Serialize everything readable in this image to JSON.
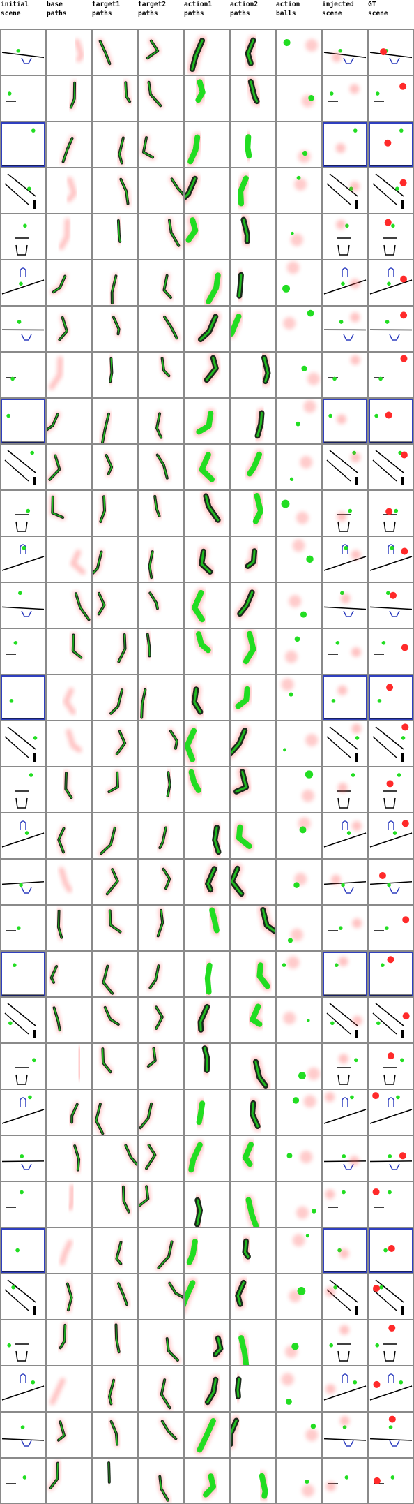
{
  "columns": [
    {
      "key": "initial",
      "line1": "initial",
      "line2": "scene"
    },
    {
      "key": "base",
      "line1": "base",
      "line2": "paths"
    },
    {
      "key": "target1",
      "line1": "target1",
      "line2": "paths"
    },
    {
      "key": "target2",
      "line1": "target2",
      "line2": "paths"
    },
    {
      "key": "action1",
      "line1": "action1",
      "line2": "paths"
    },
    {
      "key": "action2",
      "line1": "action2",
      "line2": "paths"
    },
    {
      "key": "balls",
      "line1": "action",
      "line2": "balls"
    },
    {
      "key": "injected",
      "line1": "injected",
      "line2": "scene"
    },
    {
      "key": "gt",
      "line1": "GT",
      "line2": "scene"
    }
  ],
  "colors": {
    "border": "#8a8a8a",
    "wall": "#000000",
    "blue": "#2f3fbf",
    "green": "#22dd22",
    "red": "#ff2a2a",
    "path_dark": "#1c2a1c",
    "heat": "#ff5555"
  },
  "row_count": 32
}
